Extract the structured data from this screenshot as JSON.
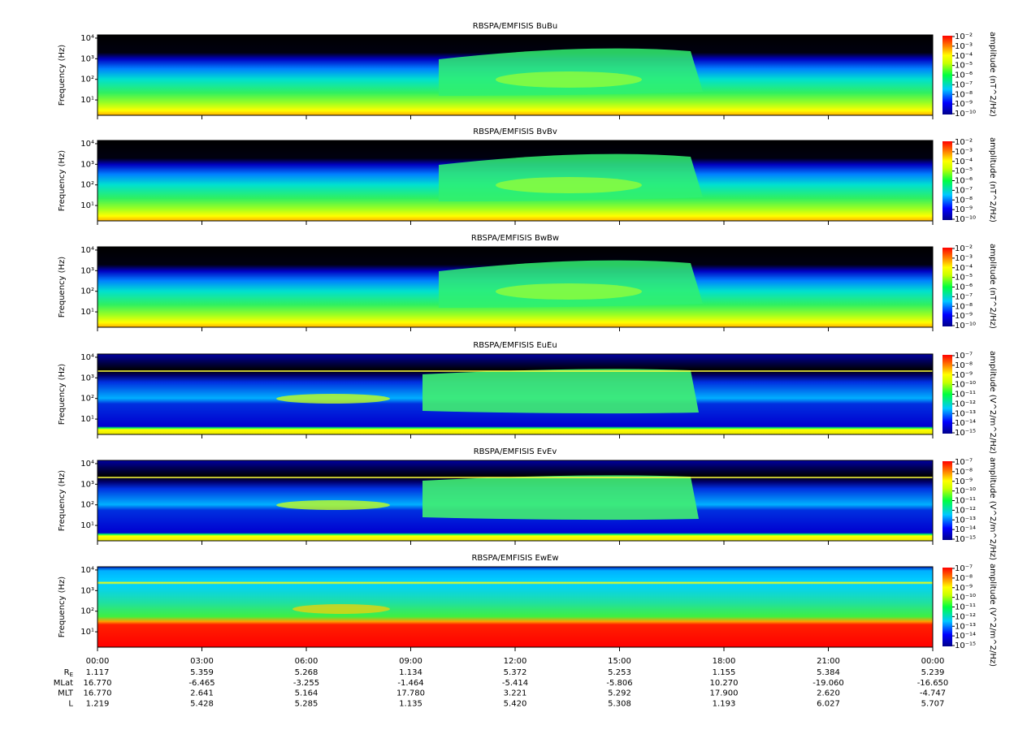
{
  "chart_data": [
    {
      "type": "spectrogram",
      "title": "RBSPA/EMFISIS  BuBu",
      "y_label": "Frequency (Hz)",
      "log_y": true,
      "ylim": [
        1.8,
        14300
      ],
      "yticks": [
        {
          "value": 10,
          "label": "10¹"
        },
        {
          "value": 100,
          "label": "10²"
        },
        {
          "value": 1000,
          "label": "10³"
        },
        {
          "value": 10000,
          "label": "10⁴"
        }
      ],
      "colorbar": {
        "label": "amplitude (nT^2/Hz)",
        "log": true,
        "clim": [
          1e-10,
          0.01
        ],
        "ticks": [
          {
            "value": 0.01,
            "label": "10⁻²"
          },
          {
            "value": 0.001,
            "label": "10⁻³"
          },
          {
            "value": 0.0001,
            "label": "10⁻⁴"
          },
          {
            "value": 1e-05,
            "label": "10⁻⁵"
          },
          {
            "value": 1e-06,
            "label": "10⁻⁶"
          },
          {
            "value": 1e-07,
            "label": "10⁻⁷"
          },
          {
            "value": 1e-08,
            "label": "10⁻⁸"
          },
          {
            "value": 1e-09,
            "label": "10⁻⁹"
          },
          {
            "value": 1e-10,
            "label": "10⁻¹⁰"
          }
        ]
      }
    },
    {
      "type": "spectrogram",
      "title": "RBSPA/EMFISIS  BvBv",
      "y_label": "Frequency (Hz)",
      "log_y": true,
      "ylim": [
        1.8,
        14300
      ],
      "yticks": [
        {
          "value": 10,
          "label": "10¹"
        },
        {
          "value": 100,
          "label": "10²"
        },
        {
          "value": 1000,
          "label": "10³"
        },
        {
          "value": 10000,
          "label": "10⁴"
        }
      ],
      "colorbar": {
        "label": "amplitude (nT^2/Hz)",
        "log": true,
        "clim": [
          1e-10,
          0.01
        ],
        "ticks": [
          {
            "value": 0.01,
            "label": "10⁻²"
          },
          {
            "value": 0.001,
            "label": "10⁻³"
          },
          {
            "value": 0.0001,
            "label": "10⁻⁴"
          },
          {
            "value": 1e-05,
            "label": "10⁻⁵"
          },
          {
            "value": 1e-06,
            "label": "10⁻⁶"
          },
          {
            "value": 1e-07,
            "label": "10⁻⁷"
          },
          {
            "value": 1e-08,
            "label": "10⁻⁸"
          },
          {
            "value": 1e-09,
            "label": "10⁻⁹"
          },
          {
            "value": 1e-10,
            "label": "10⁻¹⁰"
          }
        ]
      }
    },
    {
      "type": "spectrogram",
      "title": "RBSPA/EMFISIS  BwBw",
      "y_label": "Frequency (Hz)",
      "log_y": true,
      "ylim": [
        1.8,
        14300
      ],
      "yticks": [
        {
          "value": 10,
          "label": "10¹"
        },
        {
          "value": 100,
          "label": "10²"
        },
        {
          "value": 1000,
          "label": "10³"
        },
        {
          "value": 10000,
          "label": "10⁴"
        }
      ],
      "colorbar": {
        "label": "amplitude (nT^2/Hz)",
        "log": true,
        "clim": [
          1e-10,
          0.01
        ],
        "ticks": [
          {
            "value": 0.01,
            "label": "10⁻²"
          },
          {
            "value": 0.001,
            "label": "10⁻³"
          },
          {
            "value": 0.0001,
            "label": "10⁻⁴"
          },
          {
            "value": 1e-05,
            "label": "10⁻⁵"
          },
          {
            "value": 1e-06,
            "label": "10⁻⁶"
          },
          {
            "value": 1e-07,
            "label": "10⁻⁷"
          },
          {
            "value": 1e-08,
            "label": "10⁻⁸"
          },
          {
            "value": 1e-09,
            "label": "10⁻⁹"
          },
          {
            "value": 1e-10,
            "label": "10⁻¹⁰"
          }
        ]
      }
    },
    {
      "type": "spectrogram",
      "title": "RBSPA/EMFISIS  EuEu",
      "y_label": "Frequency (Hz)",
      "log_y": true,
      "ylim": [
        1.8,
        14300
      ],
      "yticks": [
        {
          "value": 10,
          "label": "10¹"
        },
        {
          "value": 100,
          "label": "10²"
        },
        {
          "value": 1000,
          "label": "10³"
        },
        {
          "value": 10000,
          "label": "10⁴"
        }
      ],
      "colorbar": {
        "label": "amplitude (V^2/m^2/Hz)",
        "log": true,
        "clim": [
          1e-15,
          1e-07
        ],
        "ticks": [
          {
            "value": 1e-07,
            "label": "10⁻⁷"
          },
          {
            "value": 1e-08,
            "label": "10⁻⁸"
          },
          {
            "value": 1e-09,
            "label": "10⁻⁹"
          },
          {
            "value": 1e-10,
            "label": "10⁻¹⁰"
          },
          {
            "value": 1e-11,
            "label": "10⁻¹¹"
          },
          {
            "value": 1e-12,
            "label": "10⁻¹²"
          },
          {
            "value": 1e-13,
            "label": "10⁻¹³"
          },
          {
            "value": 1e-14,
            "label": "10⁻¹⁴"
          },
          {
            "value": 1e-15,
            "label": "10⁻¹⁵"
          }
        ]
      }
    },
    {
      "type": "spectrogram",
      "title": "RBSPA/EMFISIS  EvEv",
      "y_label": "Frequency (Hz)",
      "log_y": true,
      "ylim": [
        1.8,
        14300
      ],
      "yticks": [
        {
          "value": 10,
          "label": "10¹"
        },
        {
          "value": 100,
          "label": "10²"
        },
        {
          "value": 1000,
          "label": "10³"
        },
        {
          "value": 10000,
          "label": "10⁴"
        }
      ],
      "colorbar": {
        "label": "amplitude (V^2/m^2/Hz)",
        "log": true,
        "clim": [
          1e-15,
          1e-07
        ],
        "ticks": [
          {
            "value": 1e-07,
            "label": "10⁻⁷"
          },
          {
            "value": 1e-08,
            "label": "10⁻⁸"
          },
          {
            "value": 1e-09,
            "label": "10⁻⁹"
          },
          {
            "value": 1e-10,
            "label": "10⁻¹⁰"
          },
          {
            "value": 1e-11,
            "label": "10⁻¹¹"
          },
          {
            "value": 1e-12,
            "label": "10⁻¹²"
          },
          {
            "value": 1e-13,
            "label": "10⁻¹³"
          },
          {
            "value": 1e-14,
            "label": "10⁻¹⁴"
          },
          {
            "value": 1e-15,
            "label": "10⁻¹⁵"
          }
        ]
      }
    },
    {
      "type": "spectrogram",
      "title": "RBSPA/EMFISIS  EwEw",
      "y_label": "Frequency (Hz)",
      "log_y": true,
      "ylim": [
        1.8,
        14300
      ],
      "yticks": [
        {
          "value": 10,
          "label": "10¹"
        },
        {
          "value": 100,
          "label": "10²"
        },
        {
          "value": 1000,
          "label": "10³"
        },
        {
          "value": 10000,
          "label": "10⁴"
        }
      ],
      "colorbar": {
        "label": "amplitude (V^2/m^2/Hz)",
        "log": true,
        "clim": [
          1e-15,
          1e-07
        ],
        "ticks": [
          {
            "value": 1e-07,
            "label": "10⁻⁷"
          },
          {
            "value": 1e-08,
            "label": "10⁻⁸"
          },
          {
            "value": 1e-09,
            "label": "10⁻⁹"
          },
          {
            "value": 1e-10,
            "label": "10⁻¹⁰"
          },
          {
            "value": 1e-11,
            "label": "10⁻¹¹"
          },
          {
            "value": 1e-12,
            "label": "10⁻¹²"
          },
          {
            "value": 1e-13,
            "label": "10⁻¹³"
          },
          {
            "value": 1e-14,
            "label": "10⁻¹⁴"
          },
          {
            "value": 1e-15,
            "label": "10⁻¹⁵"
          }
        ]
      },
      "xlim": [
        0,
        24
      ],
      "xticks": [
        {
          "value": 0,
          "label": "00:00"
        },
        {
          "value": 3,
          "label": "03:00"
        },
        {
          "value": 6,
          "label": "06:00"
        },
        {
          "value": 9,
          "label": "09:00"
        },
        {
          "value": 12,
          "label": "12:00"
        },
        {
          "value": 15,
          "label": "15:00"
        },
        {
          "value": 18,
          "label": "18:00"
        },
        {
          "value": 21,
          "label": "21:00"
        },
        {
          "value": 24,
          "label": "00:00"
        }
      ]
    }
  ],
  "ephemeris": {
    "rows": [
      {
        "label": {
          "text": "R",
          "subscript": "E"
        },
        "values": [
          "1.117",
          "5.359",
          "5.268",
          "1.134",
          "5.372",
          "5.253",
          "1.155",
          "5.384",
          "5.239"
        ]
      },
      {
        "label": {
          "text": "MLat"
        },
        "values": [
          "16.770",
          "-6.465",
          "-3.255",
          "-1.464",
          "-5.414",
          "-5.806",
          "10.270",
          "-19.060",
          "-16.650"
        ]
      },
      {
        "label": {
          "text": "MLT"
        },
        "values": [
          "16.770",
          "2.641",
          "5.164",
          "17.780",
          "3.221",
          "5.292",
          "17.900",
          "2.620",
          "-4.747"
        ]
      },
      {
        "label": {
          "text": "L"
        },
        "values": [
          "1.219",
          "5.428",
          "5.285",
          "1.135",
          "5.420",
          "5.308",
          "1.193",
          "6.027",
          "5.707"
        ]
      }
    ]
  }
}
